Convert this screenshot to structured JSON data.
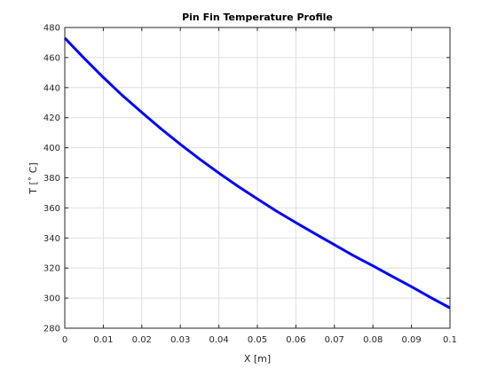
{
  "chart_data": {
    "type": "line",
    "title": "Pin Fin Temperature Profile",
    "xlabel": "X [m]",
    "ylabel": "T [˚ C]",
    "xlim": [
      0,
      0.1
    ],
    "ylim": [
      280,
      480
    ],
    "xticks": [
      0,
      0.01,
      0.02,
      0.03,
      0.04,
      0.05,
      0.06,
      0.07,
      0.08,
      0.09,
      0.1
    ],
    "xtick_labels": [
      "0",
      "0.01",
      "0.02",
      "0.03",
      "0.04",
      "0.05",
      "0.06",
      "0.07",
      "0.08",
      "0.09",
      "0.1"
    ],
    "yticks": [
      280,
      300,
      320,
      340,
      360,
      380,
      400,
      420,
      440,
      460,
      480
    ],
    "ytick_labels": [
      "280",
      "300",
      "320",
      "340",
      "360",
      "380",
      "400",
      "420",
      "440",
      "460",
      "480"
    ],
    "grid": true,
    "line_color": "#0000ff",
    "series": [
      {
        "x": [
          0,
          0.005,
          0.01,
          0.015,
          0.02,
          0.025,
          0.03,
          0.035,
          0.04,
          0.045,
          0.05,
          0.055,
          0.06,
          0.065,
          0.07,
          0.075,
          0.08,
          0.085,
          0.09,
          0.095,
          0.1
        ],
        "y": [
          473,
          459.6,
          446.8,
          434.7,
          423.5,
          412.6,
          402.3,
          392.5,
          383.2,
          374.3,
          366,
          357.8,
          350.2,
          342.8,
          335.5,
          328.2,
          321.5,
          314.5,
          307.6,
          300.4,
          293.5
        ]
      }
    ]
  }
}
